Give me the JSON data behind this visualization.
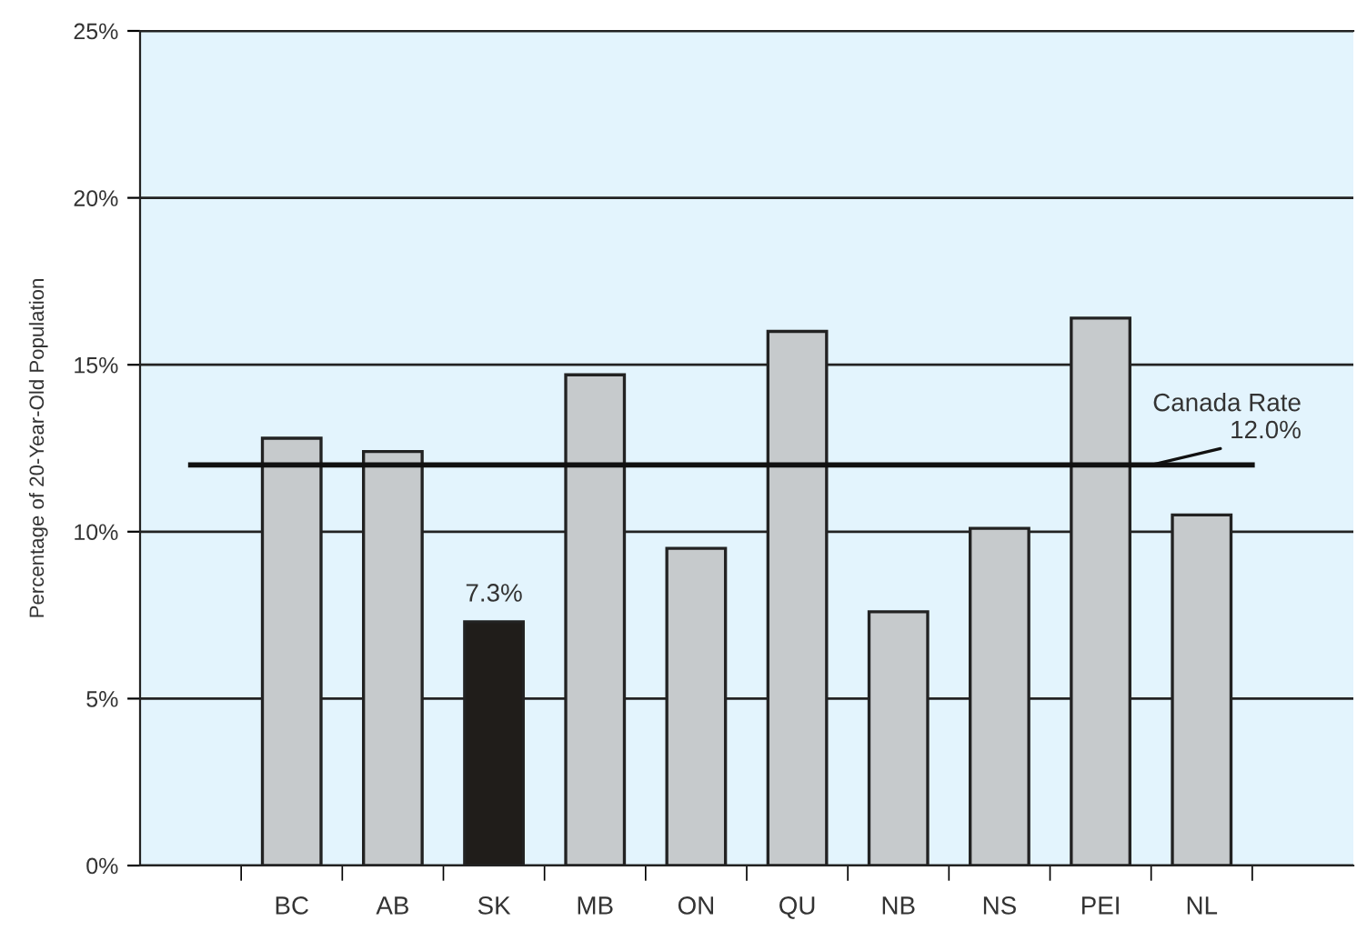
{
  "chart_data": {
    "type": "bar",
    "ylabel": "Percentage of 20-Year-Old Population",
    "categories": [
      null,
      "BC",
      "AB",
      "SK",
      "MB",
      "ON",
      "QU",
      "NB",
      "NS",
      "PEI",
      "NL",
      null
    ],
    "values": [
      null,
      12.8,
      12.4,
      7.3,
      14.7,
      9.5,
      16.0,
      7.6,
      10.1,
      16.4,
      10.5,
      null
    ],
    "colors": [
      "#c6cacc",
      "#c6cacc",
      "#c6cacc",
      "#201d1a",
      "#c6cacc",
      "#c6cacc",
      "#c6cacc",
      "#c6cacc",
      "#c6cacc",
      "#c6cacc",
      "#c6cacc",
      "#c6cacc"
    ],
    "value_labels": [
      null,
      null,
      null,
      "7.3%",
      null,
      null,
      null,
      null,
      null,
      null,
      null,
      null
    ],
    "ylim": [
      0,
      25
    ],
    "yticks": [
      {
        "value": 0,
        "label": "0%"
      },
      {
        "value": 5,
        "label": "5%"
      },
      {
        "value": 10,
        "label": "10%"
      },
      {
        "value": 15,
        "label": "15%"
      },
      {
        "value": 20,
        "label": "20%"
      },
      {
        "value": 25,
        "label": "25%"
      }
    ],
    "ref_lines": [
      {
        "axis": "y",
        "value": 12.0,
        "label": "Canada Rate\n12.0%",
        "color": "#111111",
        "line_style": "solid"
      }
    ],
    "grid": "y",
    "legend": false
  }
}
